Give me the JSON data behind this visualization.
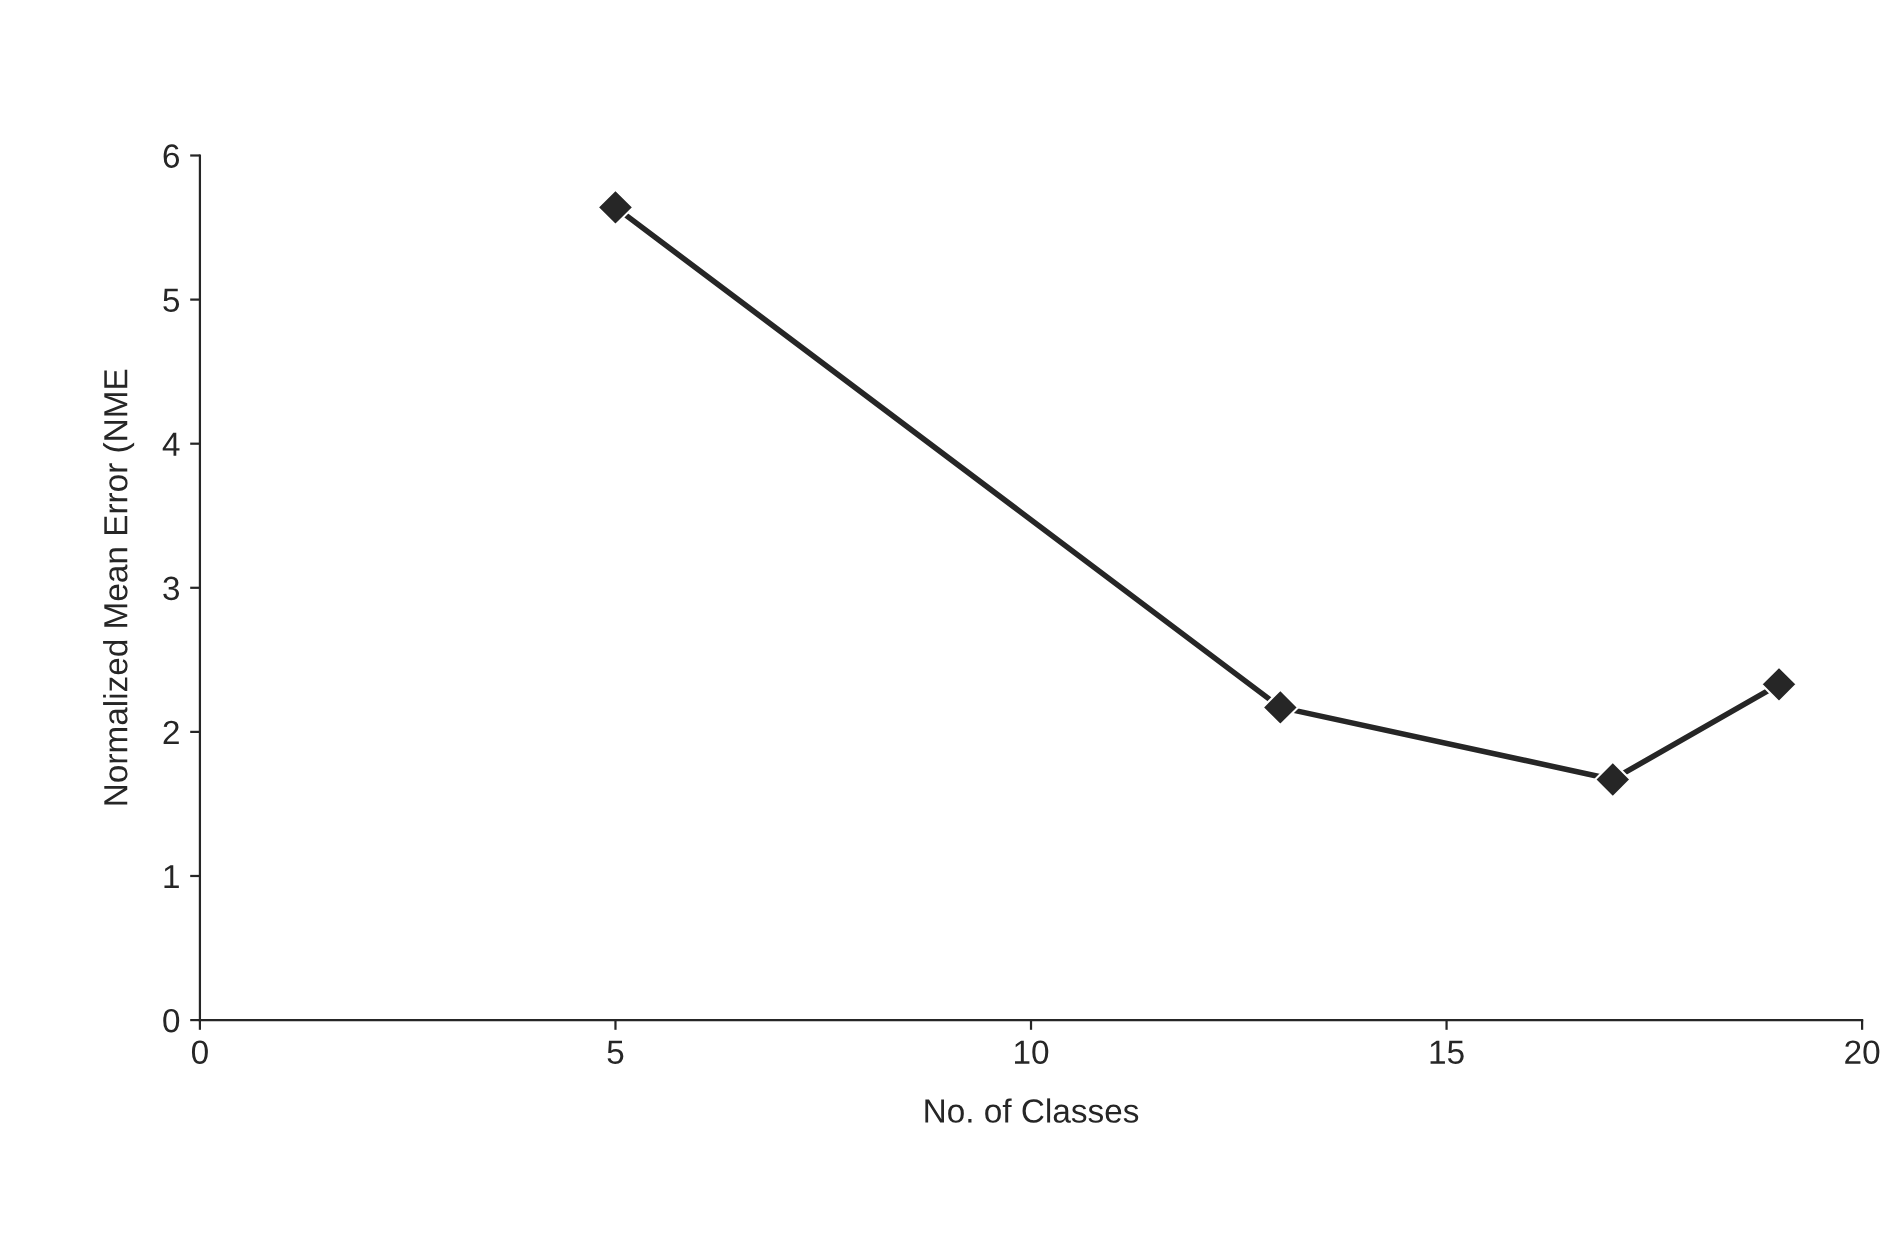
{
  "chart_data": {
    "type": "line",
    "xlabel": "No. of Classes",
    "ylabel": "Normalized Mean Error (NME",
    "x": [
      5,
      13,
      17,
      19
    ],
    "series": [
      {
        "color": "#262626",
        "values": [
          5.64,
          2.17,
          1.67,
          2.33
        ]
      }
    ],
    "xlim": [
      0,
      20
    ],
    "xticks": [
      0,
      5,
      10,
      15,
      20
    ],
    "ylim": [
      0,
      6
    ],
    "yticks": [
      0,
      1,
      2,
      3,
      4,
      5,
      6
    ],
    "grid": false,
    "legend": false,
    "marker": "diamond",
    "line_style": "solid"
  }
}
